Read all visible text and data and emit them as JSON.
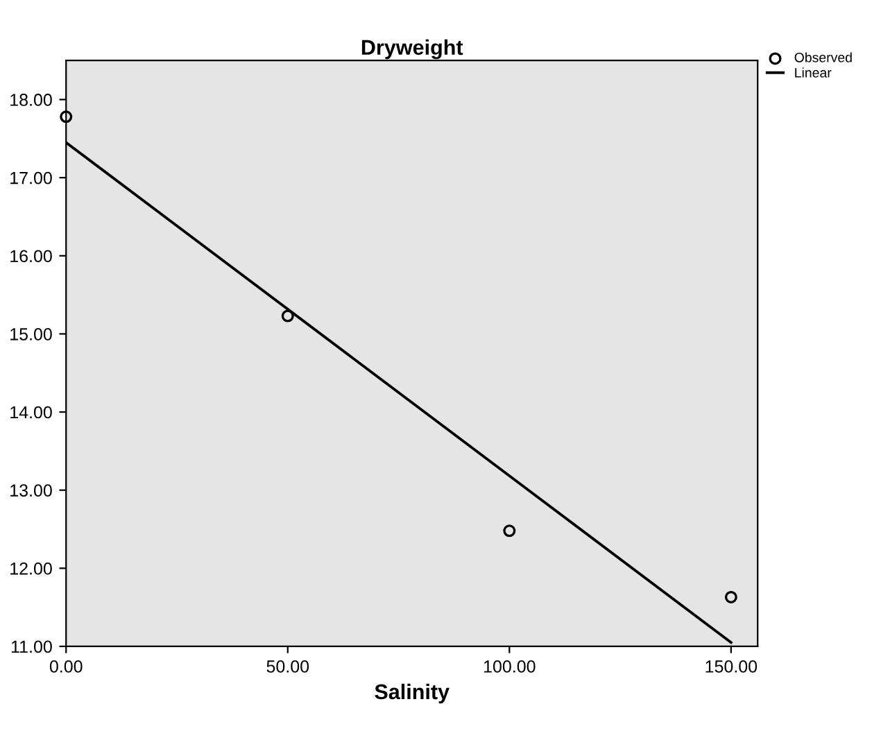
{
  "chart_data": {
    "type": "scatter",
    "title": "Dryweight",
    "xlabel": "Salinity",
    "xlim": [
      0,
      156
    ],
    "ylim": [
      11,
      18.5
    ],
    "xticks": [
      {
        "value": 0,
        "label": "0.00"
      },
      {
        "value": 50,
        "label": "50.00"
      },
      {
        "value": 100,
        "label": "100.00"
      },
      {
        "value": 150,
        "label": "150.00"
      }
    ],
    "yticks": [
      {
        "value": 11,
        "label": "11.00"
      },
      {
        "value": 12,
        "label": "12.00"
      },
      {
        "value": 13,
        "label": "13.00"
      },
      {
        "value": 14,
        "label": "14.00"
      },
      {
        "value": 15,
        "label": "15.00"
      },
      {
        "value": 16,
        "label": "16.00"
      },
      {
        "value": 17,
        "label": "17.00"
      },
      {
        "value": 18,
        "label": "18.00"
      }
    ],
    "grid": false,
    "legend": "top right",
    "series": [
      {
        "name": "Observed",
        "marker": "circle",
        "color": "#000000",
        "x": [
          0,
          50,
          100,
          150
        ],
        "values": [
          17.78,
          15.23,
          12.48,
          11.63
        ]
      },
      {
        "name": "Linear",
        "type": "line",
        "marker": "none",
        "line_style": "solid",
        "color": "#000000",
        "x": [
          0,
          150
        ],
        "values": [
          17.45,
          11.05
        ]
      }
    ]
  }
}
